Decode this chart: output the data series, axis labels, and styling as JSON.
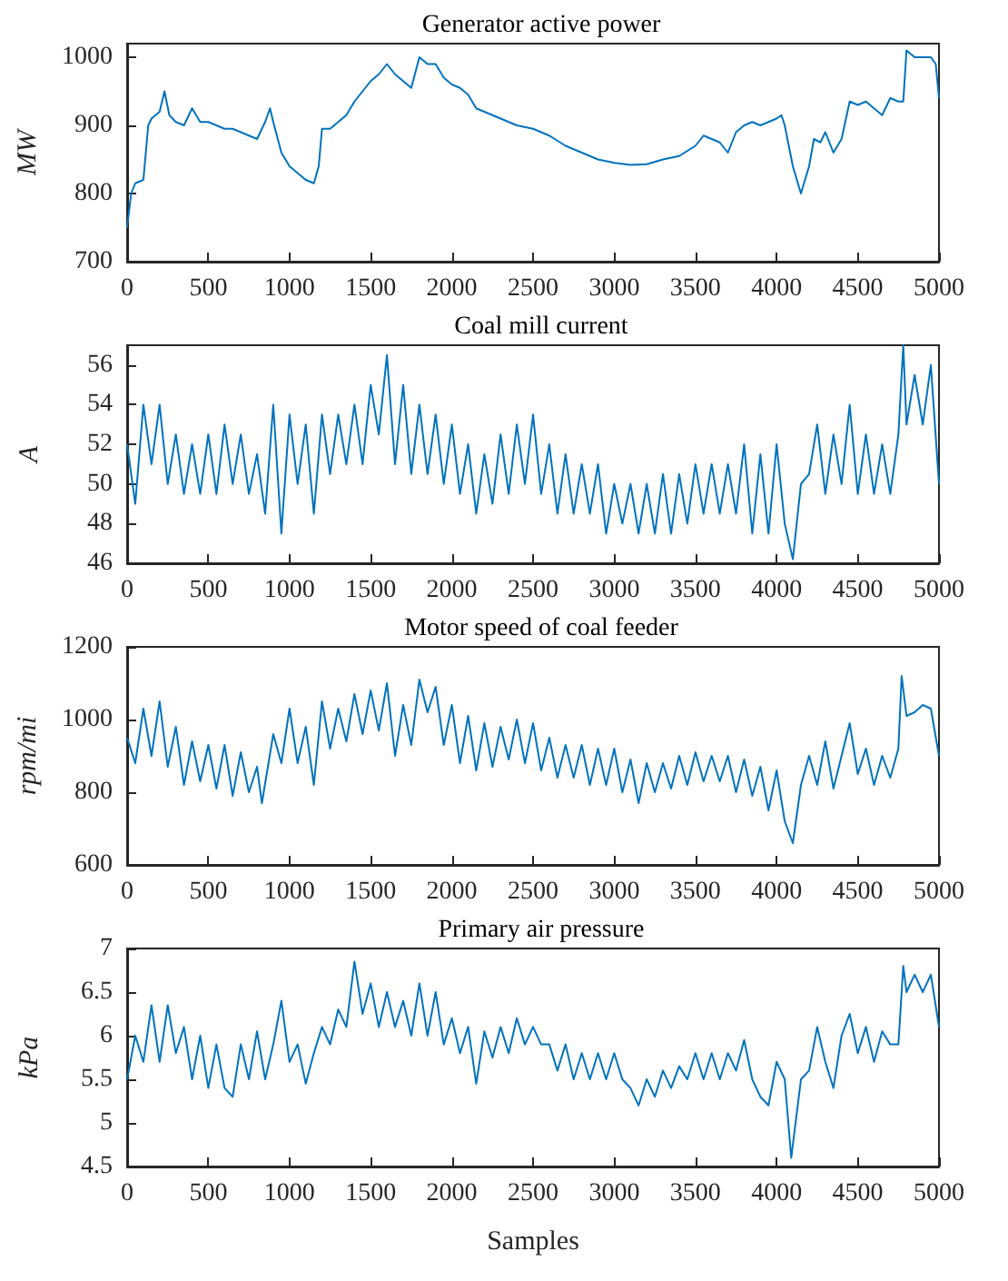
{
  "chart_data": [
    {
      "type": "line",
      "title": "Generator active power",
      "ylabel": "MW",
      "xlim": [
        0,
        5000
      ],
      "xticks": [
        0,
        500,
        1000,
        1500,
        2000,
        2500,
        3000,
        3500,
        4000,
        4500,
        5000
      ],
      "ylim": [
        700,
        1020
      ],
      "yticks": [
        700,
        800,
        900,
        1000
      ],
      "grid": false,
      "marker": "none",
      "series": [
        {
          "color": "#0072bd",
          "x": [
            0,
            25,
            50,
            100,
            130,
            150,
            200,
            230,
            260,
            300,
            350,
            400,
            450,
            500,
            550,
            600,
            650,
            700,
            750,
            800,
            850,
            880,
            900,
            950,
            1000,
            1050,
            1100,
            1150,
            1180,
            1200,
            1250,
            1300,
            1350,
            1400,
            1450,
            1500,
            1550,
            1600,
            1650,
            1700,
            1750,
            1800,
            1850,
            1900,
            1950,
            2000,
            2050,
            2100,
            2150,
            2200,
            2250,
            2300,
            2350,
            2400,
            2500,
            2600,
            2700,
            2800,
            2900,
            3000,
            3100,
            3200,
            3300,
            3400,
            3500,
            3550,
            3600,
            3650,
            3700,
            3750,
            3800,
            3850,
            3900,
            3950,
            4000,
            4030,
            4050,
            4100,
            4150,
            4200,
            4230,
            4270,
            4300,
            4350,
            4400,
            4450,
            4500,
            4550,
            4600,
            4650,
            4700,
            4750,
            4780,
            4800,
            4850,
            4900,
            4950,
            4980,
            5000
          ],
          "values": [
            750,
            800,
            815,
            820,
            900,
            910,
            920,
            950,
            915,
            905,
            900,
            925,
            905,
            905,
            900,
            895,
            895,
            890,
            885,
            880,
            905,
            925,
            905,
            860,
            840,
            830,
            820,
            815,
            840,
            895,
            895,
            905,
            915,
            935,
            950,
            965,
            975,
            990,
            975,
            965,
            955,
            1000,
            990,
            990,
            970,
            960,
            955,
            945,
            925,
            920,
            915,
            910,
            905,
            900,
            895,
            885,
            870,
            860,
            850,
            845,
            842,
            843,
            850,
            855,
            870,
            885,
            880,
            875,
            860,
            890,
            900,
            905,
            900,
            905,
            910,
            915,
            900,
            840,
            800,
            840,
            880,
            875,
            890,
            860,
            880,
            935,
            930,
            935,
            925,
            915,
            940,
            935,
            935,
            1010,
            1000,
            1000,
            1000,
            990,
            940
          ]
        }
      ]
    },
    {
      "type": "line",
      "title": "Coal mill current",
      "ylabel": "A",
      "xlim": [
        0,
        5000
      ],
      "xticks": [
        0,
        500,
        1000,
        1500,
        2000,
        2500,
        3000,
        3500,
        4000,
        4500,
        5000
      ],
      "ylim": [
        46,
        57
      ],
      "yticks": [
        46,
        48,
        50,
        52,
        54,
        56
      ],
      "grid": false,
      "marker": "none",
      "series": [
        {
          "color": "#0072bd",
          "x": [
            0,
            50,
            100,
            150,
            200,
            250,
            300,
            350,
            400,
            450,
            500,
            550,
            600,
            650,
            700,
            750,
            800,
            850,
            900,
            950,
            1000,
            1050,
            1100,
            1150,
            1200,
            1250,
            1300,
            1350,
            1400,
            1450,
            1500,
            1550,
            1600,
            1650,
            1700,
            1750,
            1800,
            1850,
            1900,
            1950,
            2000,
            2050,
            2100,
            2150,
            2200,
            2250,
            2300,
            2350,
            2400,
            2450,
            2500,
            2550,
            2600,
            2650,
            2700,
            2750,
            2800,
            2850,
            2900,
            2950,
            3000,
            3050,
            3100,
            3150,
            3200,
            3250,
            3300,
            3350,
            3400,
            3450,
            3500,
            3550,
            3600,
            3650,
            3700,
            3750,
            3800,
            3850,
            3900,
            3950,
            4000,
            4050,
            4100,
            4150,
            4200,
            4250,
            4300,
            4350,
            4400,
            4450,
            4500,
            4550,
            4600,
            4650,
            4700,
            4750,
            4780,
            4800,
            4850,
            4900,
            4950,
            5000
          ],
          "values": [
            52,
            49,
            54,
            51,
            54,
            50,
            52.5,
            49.5,
            52,
            49.5,
            52.5,
            49.5,
            53,
            50,
            52.5,
            49.5,
            51.5,
            48.5,
            54,
            47.5,
            53.5,
            50,
            53,
            48.5,
            53.5,
            50.5,
            53.5,
            51,
            54,
            51,
            55,
            52.5,
            56.5,
            51,
            55,
            50.5,
            54,
            50.5,
            53.5,
            50,
            53,
            49.5,
            52,
            48.5,
            51.5,
            49,
            52.5,
            49.5,
            53,
            50,
            53.5,
            49.5,
            52,
            48.5,
            51.5,
            48.5,
            51,
            48.5,
            51,
            47.5,
            50,
            48,
            50,
            47.5,
            50,
            47.5,
            50.5,
            47.5,
            50.5,
            48,
            51,
            48.5,
            51,
            48.5,
            51,
            48.5,
            52,
            47.5,
            51.5,
            47.5,
            52,
            48,
            46.2,
            50,
            50.5,
            53,
            49.5,
            52.5,
            50,
            54,
            49.5,
            52.5,
            49.5,
            52,
            49.5,
            52.5,
            57,
            53,
            55.5,
            53,
            56,
            50
          ]
        }
      ]
    },
    {
      "type": "line",
      "title": "Motor speed of coal feeder",
      "ylabel": "rpm/mi",
      "xlim": [
        0,
        5000
      ],
      "xticks": [
        0,
        500,
        1000,
        1500,
        2000,
        2500,
        3000,
        3500,
        4000,
        4500,
        5000
      ],
      "ylim": [
        600,
        1200
      ],
      "yticks": [
        600,
        800,
        1000,
        1200
      ],
      "grid": false,
      "marker": "none",
      "series": [
        {
          "color": "#0072bd",
          "x": [
            0,
            50,
            100,
            150,
            200,
            250,
            300,
            350,
            400,
            450,
            500,
            550,
            600,
            650,
            700,
            750,
            800,
            830,
            900,
            950,
            1000,
            1050,
            1100,
            1150,
            1200,
            1250,
            1300,
            1350,
            1400,
            1450,
            1500,
            1550,
            1600,
            1650,
            1700,
            1750,
            1800,
            1850,
            1900,
            1950,
            2000,
            2050,
            2100,
            2150,
            2200,
            2250,
            2300,
            2350,
            2400,
            2450,
            2500,
            2550,
            2600,
            2650,
            2700,
            2750,
            2800,
            2850,
            2900,
            2950,
            3000,
            3050,
            3100,
            3150,
            3200,
            3250,
            3300,
            3350,
            3400,
            3450,
            3500,
            3550,
            3600,
            3650,
            3700,
            3750,
            3800,
            3850,
            3900,
            3950,
            4000,
            4050,
            4100,
            4150,
            4200,
            4250,
            4300,
            4350,
            4400,
            4450,
            4500,
            4550,
            4600,
            4650,
            4700,
            4750,
            4770,
            4800,
            4850,
            4900,
            4950,
            5000
          ],
          "values": [
            950,
            880,
            1030,
            900,
            1050,
            870,
            980,
            820,
            940,
            830,
            930,
            810,
            930,
            790,
            910,
            800,
            870,
            770,
            960,
            880,
            1030,
            880,
            980,
            820,
            1050,
            920,
            1030,
            940,
            1070,
            960,
            1080,
            970,
            1100,
            900,
            1040,
            930,
            1110,
            1020,
            1090,
            930,
            1040,
            880,
            1010,
            860,
            990,
            870,
            980,
            890,
            1000,
            880,
            990,
            860,
            950,
            840,
            930,
            840,
            930,
            820,
            920,
            820,
            920,
            800,
            890,
            770,
            880,
            800,
            880,
            810,
            900,
            820,
            910,
            830,
            900,
            830,
            900,
            800,
            890,
            790,
            870,
            750,
            860,
            720,
            660,
            820,
            900,
            820,
            940,
            810,
            900,
            990,
            850,
            920,
            820,
            900,
            840,
            920,
            1120,
            1010,
            1020,
            1040,
            1030,
            900
          ]
        }
      ]
    },
    {
      "type": "line",
      "title": "Primary air pressure",
      "xlabel": "Samples",
      "ylabel": "kPa",
      "xlim": [
        0,
        5000
      ],
      "xticks": [
        0,
        500,
        1000,
        1500,
        2000,
        2500,
        3000,
        3500,
        4000,
        4500,
        5000
      ],
      "ylim": [
        4.5,
        7
      ],
      "yticks": [
        4.5,
        5,
        5.5,
        6,
        6.5,
        7
      ],
      "grid": false,
      "marker": "none",
      "series": [
        {
          "color": "#0072bd",
          "x": [
            0,
            50,
            100,
            150,
            200,
            250,
            300,
            350,
            400,
            450,
            500,
            550,
            600,
            650,
            700,
            750,
            800,
            850,
            900,
            950,
            1000,
            1050,
            1100,
            1150,
            1200,
            1250,
            1300,
            1350,
            1400,
            1450,
            1500,
            1550,
            1600,
            1650,
            1700,
            1750,
            1800,
            1850,
            1900,
            1950,
            2000,
            2050,
            2100,
            2150,
            2200,
            2250,
            2300,
            2350,
            2400,
            2450,
            2500,
            2550,
            2600,
            2650,
            2700,
            2750,
            2800,
            2850,
            2900,
            2950,
            3000,
            3050,
            3100,
            3150,
            3200,
            3250,
            3300,
            3350,
            3400,
            3450,
            3500,
            3550,
            3600,
            3650,
            3700,
            3750,
            3800,
            3850,
            3900,
            3950,
            4000,
            4050,
            4090,
            4150,
            4200,
            4250,
            4300,
            4350,
            4400,
            4450,
            4500,
            4550,
            4600,
            4650,
            4700,
            4750,
            4780,
            4800,
            4850,
            4900,
            4950,
            5000
          ],
          "values": [
            5.5,
            6.0,
            5.7,
            6.35,
            5.7,
            6.35,
            5.8,
            6.1,
            5.5,
            6.0,
            5.4,
            5.9,
            5.4,
            5.3,
            5.9,
            5.5,
            6.05,
            5.5,
            5.9,
            6.4,
            5.7,
            5.9,
            5.45,
            5.8,
            6.1,
            5.9,
            6.3,
            6.1,
            6.85,
            6.25,
            6.6,
            6.1,
            6.5,
            6.1,
            6.4,
            6.0,
            6.6,
            6.0,
            6.5,
            5.9,
            6.2,
            5.8,
            6.1,
            5.45,
            6.05,
            5.75,
            6.1,
            5.8,
            6.2,
            5.9,
            6.1,
            5.9,
            5.9,
            5.6,
            5.9,
            5.5,
            5.8,
            5.5,
            5.8,
            5.5,
            5.8,
            5.5,
            5.4,
            5.2,
            5.5,
            5.3,
            5.6,
            5.4,
            5.65,
            5.5,
            5.8,
            5.5,
            5.8,
            5.5,
            5.8,
            5.6,
            5.95,
            5.5,
            5.3,
            5.2,
            5.7,
            5.5,
            4.6,
            5.5,
            5.6,
            6.1,
            5.7,
            5.4,
            6.0,
            6.25,
            5.8,
            6.1,
            5.7,
            6.05,
            5.9,
            5.9,
            6.8,
            6.5,
            6.7,
            6.5,
            6.7,
            6.1
          ]
        }
      ]
    }
  ]
}
